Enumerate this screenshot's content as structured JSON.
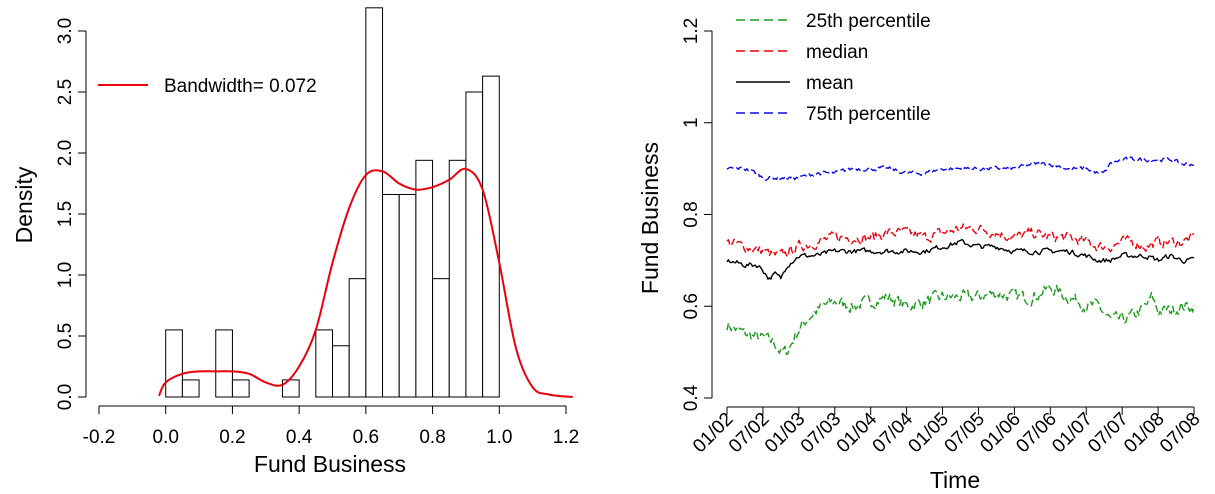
{
  "chart_data": [
    {
      "type": "bar",
      "subtype": "histogram-with-density",
      "xlabel": "Fund Business",
      "ylabel": "Density",
      "xlim": [
        -0.2,
        1.2
      ],
      "ylim": [
        0,
        3.2
      ],
      "x_ticks": [
        "-0.2",
        "0.0",
        "0.2",
        "0.4",
        "0.6",
        "0.8",
        "1.0",
        "1.2"
      ],
      "y_ticks": [
        "0.0",
        "0.5",
        "1.0",
        "1.5",
        "2.0",
        "2.5",
        "3.0"
      ],
      "bin_width": 0.05,
      "bins": [
        {
          "x0": 0.0,
          "x1": 0.05,
          "density": 0.55
        },
        {
          "x0": 0.05,
          "x1": 0.1,
          "density": 0.14
        },
        {
          "x0": 0.1,
          "x1": 0.15,
          "density": 0.0
        },
        {
          "x0": 0.15,
          "x1": 0.2,
          "density": 0.55
        },
        {
          "x0": 0.2,
          "x1": 0.25,
          "density": 0.14
        },
        {
          "x0": 0.25,
          "x1": 0.3,
          "density": 0.0
        },
        {
          "x0": 0.3,
          "x1": 0.35,
          "density": 0.0
        },
        {
          "x0": 0.35,
          "x1": 0.4,
          "density": 0.14
        },
        {
          "x0": 0.4,
          "x1": 0.45,
          "density": 0.0
        },
        {
          "x0": 0.45,
          "x1": 0.5,
          "density": 0.55
        },
        {
          "x0": 0.5,
          "x1": 0.55,
          "density": 0.42
        },
        {
          "x0": 0.55,
          "x1": 0.6,
          "density": 0.97
        },
        {
          "x0": 0.6,
          "x1": 0.65,
          "density": 3.19
        },
        {
          "x0": 0.65,
          "x1": 0.7,
          "density": 1.66
        },
        {
          "x0": 0.7,
          "x1": 0.75,
          "density": 1.66
        },
        {
          "x0": 0.75,
          "x1": 0.8,
          "density": 1.94
        },
        {
          "x0": 0.8,
          "x1": 0.85,
          "density": 0.97
        },
        {
          "x0": 0.85,
          "x1": 0.9,
          "density": 1.94
        },
        {
          "x0": 0.9,
          "x1": 0.95,
          "density": 2.5
        },
        {
          "x0": 0.95,
          "x1": 1.0,
          "density": 2.63
        }
      ],
      "density_curve": {
        "color": "#e8000b",
        "x": [
          -0.02,
          0.0,
          0.05,
          0.1,
          0.15,
          0.2,
          0.25,
          0.3,
          0.35,
          0.4,
          0.45,
          0.5,
          0.55,
          0.6,
          0.65,
          0.7,
          0.75,
          0.8,
          0.85,
          0.9,
          0.95,
          1.0,
          1.05,
          1.1,
          1.15,
          1.22
        ],
        "y": [
          0.01,
          0.12,
          0.19,
          0.21,
          0.21,
          0.21,
          0.19,
          0.12,
          0.1,
          0.25,
          0.55,
          1.1,
          1.55,
          1.82,
          1.85,
          1.75,
          1.7,
          1.72,
          1.78,
          1.87,
          1.7,
          1.1,
          0.4,
          0.08,
          0.02,
          0.0
        ]
      },
      "legend": {
        "position": "top-left",
        "entries": [
          {
            "label": "Bandwidth= 0.072",
            "color": "#e8000b",
            "dash": "solid"
          }
        ]
      }
    },
    {
      "type": "line",
      "xlabel": "Time",
      "ylabel": "Fund Business",
      "ylim": [
        0.4,
        1.2
      ],
      "y_ticks": [
        "0.4",
        "0.6",
        "0.8",
        "1",
        "1.2"
      ],
      "x_ticks": [
        "01/02",
        "07/02",
        "01/03",
        "07/03",
        "01/04",
        "07/04",
        "01/05",
        "07/05",
        "01/06",
        "07/06",
        "01/07",
        "07/07",
        "01/08",
        "07/08"
      ],
      "x_range_months": [
        0,
        78
      ],
      "legend": {
        "position": "top-left",
        "entries": [
          {
            "label": "25th percentile",
            "color": "#1e9a1e",
            "dash": "dashed"
          },
          {
            "label": "median",
            "color": "#e8000b",
            "dash": "dashed"
          },
          {
            "label": "mean",
            "color": "#000000",
            "dash": "solid"
          },
          {
            "label": "75th percentile",
            "color": "#0a0ae6",
            "dash": "dashed"
          }
        ]
      },
      "series": [
        {
          "name": "25th percentile",
          "color": "#1e9a1e",
          "dash": "dashed",
          "noise": 0.012,
          "t": [
            0,
            3,
            6,
            8,
            9,
            10,
            12,
            14,
            16,
            18,
            21,
            24,
            27,
            30,
            33,
            36,
            39,
            42,
            45,
            48,
            51,
            54,
            57,
            59,
            60,
            62,
            64,
            66,
            68,
            70,
            71,
            72,
            74,
            76,
            78
          ],
          "v": [
            0.56,
            0.54,
            0.53,
            0.52,
            0.5,
            0.5,
            0.55,
            0.58,
            0.6,
            0.61,
            0.6,
            0.61,
            0.62,
            0.6,
            0.61,
            0.62,
            0.62,
            0.62,
            0.63,
            0.62,
            0.62,
            0.64,
            0.62,
            0.61,
            0.6,
            0.6,
            0.57,
            0.57,
            0.58,
            0.6,
            0.62,
            0.59,
            0.59,
            0.6,
            0.6
          ]
        },
        {
          "name": "median",
          "color": "#e8000b",
          "dash": "dashed",
          "noise": 0.01,
          "t": [
            0,
            3,
            6,
            8,
            9,
            12,
            15,
            18,
            21,
            24,
            27,
            30,
            33,
            36,
            39,
            42,
            45,
            48,
            51,
            54,
            57,
            60,
            62,
            64,
            66,
            68,
            70,
            72,
            74,
            76,
            78
          ],
          "v": [
            0.74,
            0.73,
            0.72,
            0.71,
            0.71,
            0.73,
            0.74,
            0.75,
            0.75,
            0.75,
            0.76,
            0.76,
            0.75,
            0.76,
            0.77,
            0.77,
            0.76,
            0.75,
            0.76,
            0.75,
            0.75,
            0.74,
            0.73,
            0.73,
            0.74,
            0.74,
            0.73,
            0.74,
            0.74,
            0.74,
            0.75
          ]
        },
        {
          "name": "mean",
          "color": "#000000",
          "dash": "solid",
          "noise": 0.005,
          "t": [
            0,
            3,
            5,
            6,
            7,
            8,
            9,
            10,
            12,
            15,
            18,
            21,
            24,
            27,
            30,
            33,
            36,
            39,
            42,
            45,
            48,
            51,
            54,
            57,
            60,
            62,
            64,
            66,
            68,
            70,
            72,
            74,
            76,
            78
          ],
          "v": [
            0.7,
            0.69,
            0.69,
            0.68,
            0.66,
            0.67,
            0.66,
            0.69,
            0.71,
            0.71,
            0.72,
            0.72,
            0.72,
            0.72,
            0.72,
            0.72,
            0.73,
            0.74,
            0.73,
            0.73,
            0.72,
            0.72,
            0.72,
            0.72,
            0.71,
            0.7,
            0.7,
            0.71,
            0.71,
            0.71,
            0.7,
            0.71,
            0.7,
            0.7
          ]
        },
        {
          "name": "75th percentile",
          "color": "#0a0ae6",
          "dash": "dashed",
          "noise": 0.004,
          "t": [
            0,
            3,
            5,
            6,
            8,
            10,
            12,
            15,
            18,
            21,
            24,
            27,
            30,
            33,
            36,
            39,
            42,
            45,
            48,
            51,
            54,
            57,
            60,
            62,
            63,
            64,
            66,
            68,
            70,
            72,
            74,
            76,
            78
          ],
          "v": [
            0.9,
            0.9,
            0.89,
            0.88,
            0.88,
            0.88,
            0.88,
            0.89,
            0.89,
            0.9,
            0.9,
            0.9,
            0.89,
            0.89,
            0.9,
            0.9,
            0.9,
            0.9,
            0.9,
            0.91,
            0.91,
            0.9,
            0.9,
            0.89,
            0.89,
            0.91,
            0.92,
            0.92,
            0.92,
            0.92,
            0.92,
            0.91,
            0.91
          ]
        }
      ]
    }
  ]
}
